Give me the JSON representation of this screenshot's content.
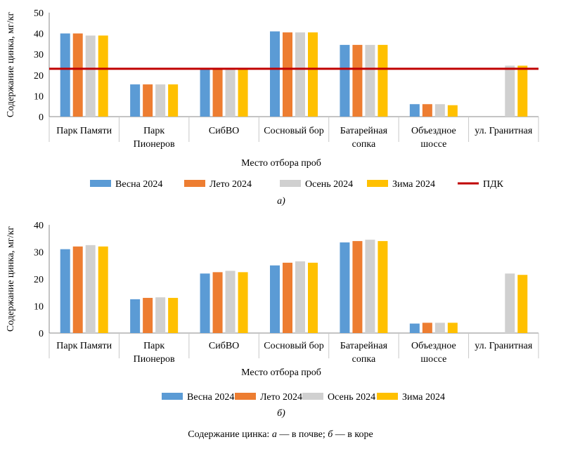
{
  "colors": {
    "series": [
      "#5B9BD5",
      "#ED7D31",
      "#D0D0D0",
      "#FFC000"
    ],
    "limit_line": "#C00000",
    "axis": "#888888"
  },
  "chart_data": [
    {
      "type": "bar",
      "panel_label": "а)",
      "categories": [
        [
          "Парк Памяти"
        ],
        [
          "Парк",
          "Пионеров"
        ],
        [
          "СибВО"
        ],
        [
          "Сосновый бор"
        ],
        [
          "Батарейная",
          "сопка"
        ],
        [
          "Объездное",
          "шоссе"
        ],
        [
          "ул. Гранитная"
        ]
      ],
      "series": [
        {
          "name": "Весна 2024",
          "values": [
            40,
            15.5,
            23,
            41,
            34.5,
            6,
            null
          ]
        },
        {
          "name": "Лето 2024",
          "values": [
            40,
            15.5,
            23,
            40.5,
            34.5,
            6,
            null
          ]
        },
        {
          "name": "Осень 2024",
          "values": [
            39,
            15.5,
            23,
            40.5,
            34.5,
            6,
            24.5
          ]
        },
        {
          "name": "Зима 2024",
          "values": [
            39,
            15.5,
            23,
            40.5,
            34.5,
            5.5,
            24.5
          ]
        }
      ],
      "limit": {
        "name": "ПДК",
        "value": 23
      },
      "xlabel": "Место отбора проб",
      "ylabel": "Содержание цинка, мг/кг",
      "ylim": [
        0,
        50
      ],
      "yticks": [
        0,
        10,
        20,
        30,
        40,
        50
      ],
      "legend": "bottom"
    },
    {
      "type": "bar",
      "panel_label": "б)",
      "categories": [
        [
          "Парк Памяти"
        ],
        [
          "Парк",
          "Пионеров"
        ],
        [
          "СибВО"
        ],
        [
          "Сосновый бор"
        ],
        [
          "Батарейная",
          "сопка"
        ],
        [
          "Объездное",
          "шоссе"
        ],
        [
          "ул. Гранитная"
        ]
      ],
      "series": [
        {
          "name": "Весна 2024",
          "values": [
            31,
            12.5,
            22,
            25,
            33.5,
            3.5,
            null
          ]
        },
        {
          "name": "Лето 2024",
          "values": [
            32,
            13,
            22.5,
            26,
            34,
            3.8,
            null
          ]
        },
        {
          "name": "Осень 2024",
          "values": [
            32.5,
            13.2,
            23,
            26.5,
            34.5,
            3.8,
            22
          ]
        },
        {
          "name": "Зима 2024",
          "values": [
            32,
            13,
            22.5,
            26,
            34,
            3.8,
            21.5
          ]
        }
      ],
      "xlabel": "Место отбора проб",
      "ylabel": "Содержание цинка, мг/кг",
      "ylim": [
        0,
        40
      ],
      "yticks": [
        0,
        10,
        20,
        30,
        40
      ],
      "legend": "bottom"
    }
  ],
  "caption": {
    "prefix": "Содержание цинка: ",
    "a": "а",
    "a_text": " — в почве; ",
    "b": "б",
    "b_text": " — в коре"
  }
}
